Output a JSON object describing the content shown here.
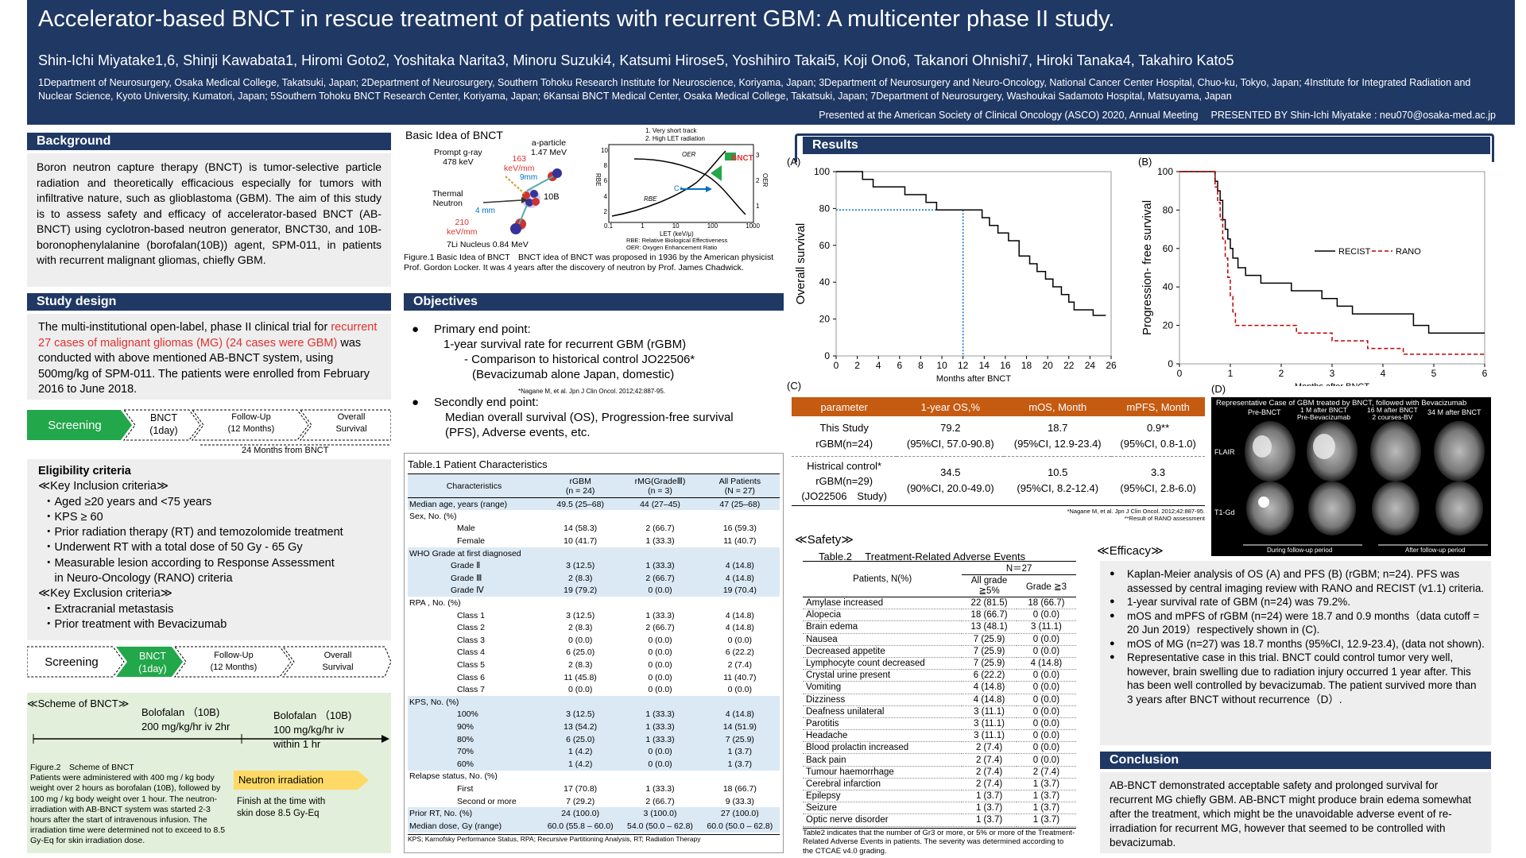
{
  "header": {
    "title": "Accelerator-based BNCT in rescue treatment of patients with recurrent GBM: A multicenter phase II study.",
    "authors": "Shin-Ichi Miyatake1,6, Shinji Kawabata1, Hiromi Goto2, Yoshitaka Narita3, Minoru Suzuki4, Katsumi Hirose5, Yoshihiro Takai5, Koji Ono6, Takanori Ohnishi7, Hiroki Tanaka4, Takahiro Kato5",
    "affiliations": "1Department of Neurosurgery, Osaka Medical College, Takatsuki, Japan; 2Department of Neurosurgery, Southern Tohoku Research Institute for Neuroscience, Koriyama, Japan; 3Department of Neurosurgery and Neuro-Oncology, National Cancer Center Hospital, Chuo-ku, Tokyo, Japan; 4Institute for Integrated Radiation and Nuclear Science, Kyoto University, Kumatori, Japan; 5Southern Tohoku BNCT Research Center, Koriyama, Japan; 6Kansai BNCT Medical Center, Osaka Medical College, Takatsuki, Japan; 7Department of Neurosurgery, Washoukai Sadamoto Hospital, Matsuyama, Japan",
    "presented": "Presented at the American Society of Clinical Oncology (ASCO) 2020, Annual Meeting　 PRESENTED BY Shin-Ichi Miyatake : neu070@osaka-med.ac.jp"
  },
  "background": {
    "heading": "Background",
    "text": "Boron neutron capture therapy (BNCT) is tumor-selective particle radiation and theoretically efficacious especially for tumors with infiltrative nature, such as glioblastoma (GBM). The aim of this study is to assess safety and efficacy of accelerator-based BNCT (AB-BNCT) using cyclotron-based neutron generator, BNCT30, and 10B-boronophenylalanine (borofalan(10B)) agent, SPM-011, in patients with recurrent malignant gliomas, chiefly GBM."
  },
  "study_design": {
    "heading": "Study design",
    "text_pre": "The multi-institutional open-label, phase II clinical trial for ",
    "text_red": "recurrent 27 cases of malignant gliomas (MG) (24 cases were GBM)",
    "text_post": " was conducted with above mentioned AB-BNCT system, using 500mg/kg of SPM-011. The patients were enrolled from February 2016 to June 2018.",
    "flow1": [
      "Screening",
      "BNCT\n(1day)",
      "Follow-Up\n(12 Months)",
      "Overall\nSurvival"
    ],
    "flow1_note": "24 Months from BNCT",
    "eligibility_title": "Eligibility criteria",
    "inclusion_title": "≪Key Inclusion criteria≫",
    "inclusion": [
      "・Aged ≥20 years and <75 years",
      "・KPS ≥ 60",
      "・Prior radiation therapy (RT) and temozolomide treatment",
      "・Underwent RT with a total dose of 50 Gy - 65 Gy",
      "・Measurable lesion according to Response Assessment",
      "　in Neuro-Oncology (RANO) criteria"
    ],
    "exclusion_title": "≪Key Exclusion criteria≫",
    "exclusion": [
      "・Extracranial metastasis",
      "・Prior treatment with Bevacizumab"
    ],
    "flow2": [
      "Screening",
      "BNCT\n(1day)",
      "Follow-Up\n(12 Months)",
      "Overall\nSurvival"
    ],
    "scheme_title": "≪Scheme of BNCT≫",
    "bolus1": "Bolofalan （10B)\n200 mg/kg/hr iv 2hr",
    "bolus2": "Bolofalan （10B)\n100 mg/kg/hr iv\nwithin 1 hr",
    "neutron": "Neutron irradiation",
    "finish": "Finish at the time with\nskin dose 8.5 Gy-Eq",
    "fig2_caption": "Figure.2　Scheme of BNCT\nPatients were administered with 400 mg / kg body weight over 2 hours as borofalan (10B), followed by 100 mg / kg body weight over 1 hour. The neutron-irradiation with AB-BNCT system was started 2-3 hours after the start of intravenous infusion. The irradiation time were determined not to exceed to 8.5 Gy-Eq for skin irradiation dose."
  },
  "basic_idea": {
    "title": "Basic Idea of BNCT",
    "labels": {
      "prompt": "Prompt g-ray\n478 keV",
      "alpha": "a-particle\n1.47 MeV",
      "kev163": "163\nkeV/mm",
      "um9": "9mm",
      "thermal": "Thermal\nNeutron",
      "b10": "10B",
      "mm4": "4 mm",
      "kev210": "210\nkeV/mm",
      "li": "7Li Nucleus 0.84 MeV",
      "legend1": "1. Very short track",
      "legend2": "2. High LET radiation",
      "oer": "OER",
      "bnct": "BNCT",
      "c": "C+",
      "rbe_curve": "RBE",
      "rbe_axis": "RBE",
      "oer_axis": "OER",
      "let": "LET (keV/μ)",
      "foot1": "RBE: Relative Biological Effectiveness",
      "foot2": "OER: Oxygen Enhancement Ratio",
      "y_ticks": [
        "10",
        "8",
        "6",
        "4",
        "2",
        "0"
      ],
      "y2_ticks": [
        "3",
        "2",
        "1"
      ],
      "x_ticks": [
        "0.1",
        "1",
        "10",
        "100",
        "1000"
      ]
    },
    "caption": "Figure.1 Basic Idea of BNCT　BNCT idea of BNCT was proposed in 1936 by the American physicist Prof. Gordon Locker. It was 4 years after the discovery of neutron by Prof. James Chadwick."
  },
  "objectives": {
    "heading": "Objectives",
    "primary": "Primary end point:",
    "primary_lines": [
      "1-year survival rate for recurrent GBM (rGBM)",
      "- Comparison to historical control JO22506*",
      "(Bevacizumab alone Japan, domestic)"
    ],
    "ref": "*Nagane M, et al. Jpn J Clin Oncol. 2012;42:887-95.",
    "secondary": "Secondly end point:",
    "secondary_lines": [
      "Median overall survival (OS), Progression-free survival",
      "(PFS), Adverse events, etc."
    ]
  },
  "table1": {
    "title": "Table.1 Patient Characteristics",
    "headers": [
      "Characteristics",
      "rGBM\n(n = 24)",
      "rMG(GradeⅢ)\n(n = 3)",
      "All Patients\n(N = 27)"
    ],
    "rows": [
      {
        "c": "Median age, years (range)",
        "a": "49.5 (25–68)",
        "b": "44 (27–45)",
        "d": "47 (25–68)",
        "indent": 0,
        "shade": true
      },
      {
        "c": "Sex, No. (%)",
        "a": "",
        "b": "",
        "d": "",
        "indent": 0,
        "shade": false
      },
      {
        "c": "Male",
        "a": "14 (58.3)",
        "b": "2 (66.7)",
        "d": "16 (59.3)",
        "indent": 2,
        "shade": false
      },
      {
        "c": "Female",
        "a": "10 (41.7)",
        "b": "1 (33.3)",
        "d": "11 (40.7)",
        "indent": 2,
        "shade": false
      },
      {
        "c": "WHO Grade at first diagnosed",
        "a": "",
        "b": "",
        "d": "",
        "indent": 0,
        "shade": true
      },
      {
        "c": "Grade Ⅱ",
        "a": "3 (12.5)",
        "b": "1 (33.3)",
        "d": "4 (14.8)",
        "indent": 1,
        "shade": true
      },
      {
        "c": "Grade Ⅲ",
        "a": "2 (8.3)",
        "b": "2 (66.7)",
        "d": "4 (14.8)",
        "indent": 1,
        "shade": true
      },
      {
        "c": "Grade Ⅳ",
        "a": "19 (79.2)",
        "b": "0 (0.0)",
        "d": "19 (70.4)",
        "indent": 1,
        "shade": true
      },
      {
        "c": "RPA , No. (%)",
        "a": "",
        "b": "",
        "d": "",
        "indent": 0,
        "shade": false
      },
      {
        "c": "Class 1",
        "a": "3 (12.5)",
        "b": "1 (33.3)",
        "d": "4 (14.8)",
        "indent": 2,
        "shade": false
      },
      {
        "c": "Class 2",
        "a": "2 (8.3)",
        "b": "2 (66.7)",
        "d": "4 (14.8)",
        "indent": 2,
        "shade": false
      },
      {
        "c": "Class 3",
        "a": "0 (0.0)",
        "b": "0 (0.0)",
        "d": "0 (0.0)",
        "indent": 2,
        "shade": false
      },
      {
        "c": "Class 4",
        "a": "6 (25.0)",
        "b": "0 (0.0)",
        "d": "6 (22.2)",
        "indent": 2,
        "shade": false
      },
      {
        "c": "Class 5",
        "a": "2 (8.3)",
        "b": "0 (0.0)",
        "d": "2 (7.4)",
        "indent": 2,
        "shade": false
      },
      {
        "c": "Class 6",
        "a": "11 (45.8)",
        "b": "0 (0.0)",
        "d": "11 (40.7)",
        "indent": 2,
        "shade": false
      },
      {
        "c": "Class 7",
        "a": "0 (0.0)",
        "b": "0 (0.0)",
        "d": "0 (0.0)",
        "indent": 2,
        "shade": false
      },
      {
        "c": "KPS, No. (%)",
        "a": "",
        "b": "",
        "d": "",
        "indent": 0,
        "shade": true
      },
      {
        "c": "100%",
        "a": "3 (12.5)",
        "b": "1 (33.3)",
        "d": "4 (14.8)",
        "indent": 2,
        "shade": true
      },
      {
        "c": "90%",
        "a": "13 (54.2)",
        "b": "1 (33.3)",
        "d": "14 (51.9)",
        "indent": 2,
        "shade": true
      },
      {
        "c": "80%",
        "a": "6 (25.0)",
        "b": "1 (33.3)",
        "d": "7 (25.9)",
        "indent": 2,
        "shade": true
      },
      {
        "c": "70%",
        "a": "1 (4.2)",
        "b": "0 (0.0)",
        "d": "1 (3.7)",
        "indent": 2,
        "shade": true
      },
      {
        "c": "60%",
        "a": "1 (4.2)",
        "b": "0 (0.0)",
        "d": "1 (3.7)",
        "indent": 2,
        "shade": true
      },
      {
        "c": "Relapse status, No. (%)",
        "a": "",
        "b": "",
        "d": "",
        "indent": 0,
        "shade": false
      },
      {
        "c": "First",
        "a": "17 (70.8)",
        "b": "1 (33.3)",
        "d": "18 (66.7)",
        "indent": 2,
        "shade": false
      },
      {
        "c": "Second or more",
        "a": "7 (29.2)",
        "b": "2 (66.7)",
        "d": "9 (33.3)",
        "indent": 2,
        "shade": false
      },
      {
        "c": "Prior RT, No. (%)",
        "a": "24 (100.0)",
        "b": "3 (100.0)",
        "d": "27 (100.0)",
        "indent": 0,
        "shade": true
      },
      {
        "c": "Median dose, Gy (range)",
        "a": "60.0 (55.8 – 60.0)",
        "b": "54.0 (50.0 – 62.8)",
        "d": "60.0 (50.0 – 62.8)",
        "indent": 0,
        "shade": true
      }
    ],
    "footnote": "KPS; Karnofsky Performance Status, RPA; Recursive Partitioning Analysis, RT; Radiation Therapy"
  },
  "results": {
    "heading": "Results",
    "panel_a": "(A)",
    "panel_b": "(B)",
    "panel_c": "(C)",
    "panel_d": "(D)",
    "results_table": {
      "headers": [
        "parameter",
        "1-year OS,%",
        "mOS, Month",
        "mPFS, Month"
      ],
      "rows": [
        [
          "This Study\nrGBM(n=24)",
          "79.2\n(95%CI, 57.0-90.8)",
          "18.7\n(95%CI, 12.9-23.4)",
          "0.9**\n(95%CI, 0.8-1.0)"
        ],
        [
          "Historical control*\nrGBM(n=29)\n(JO22506　Study)",
          "34.5\n(90%CI, 20.0-49.0)",
          "10.5\n(95%CI, 8.2-12.4)",
          "3.3\n(95%CI, 2.8-6.0)"
        ]
      ],
      "rows_display": [
        [
          "This Study\nrGBM(n=24)",
          "79.2\n(95%CI, 57.0-90.8)",
          "18.7\n(95%CI, 12.9-23.4)",
          "0.9**\n(95%CI, 0.8-1.0)"
        ],
        [
          "Histrical control*\nrGBM(n=29)\n(JO22506　Study)",
          "34.5\n(90%CI, 20.0-49.0)",
          "10.5\n(95%CI, 8.2-12.4)",
          "3.3\n(95%CI, 2.8-6.0)"
        ]
      ],
      "foot1": "*Nagane M, et al. Jpn J Clin Oncol. 2012;42:887-95.",
      "foot2": "**Result of RANO assessment"
    },
    "mri": {
      "title": "Representative Case of GBM treated by BNCT, followed with Bevacizumab",
      "cols": [
        "Pre-BNCT",
        "1 M after BNCT\nPre-Bevacizumab",
        "16 M after BNCT\n2 courses-BV",
        "34 M after BNCT"
      ],
      "row_labels": [
        "FLAIR",
        "T1-Gd"
      ],
      "bottom1": "During follow-up period",
      "bottom2": "After follow-up period"
    }
  },
  "safety": {
    "heading": "≪Safety≫",
    "title": "Table.2　 Treatment-Related Adverse Events",
    "n": "N＝27",
    "col1": "Patients, N(%)",
    "col2": "All grade\n≧5%",
    "col3": "Grade ≧3",
    "rows": [
      [
        "Amylase increased",
        "22 (81.5)",
        "18 (66.7)"
      ],
      [
        "Alopecia",
        "18 (66.7)",
        "0 (0.0)"
      ],
      [
        "Brain edema",
        "13 (48.1)",
        "3 (11.1)"
      ],
      [
        "Nausea",
        "7 (25.9)",
        "0 (0.0)"
      ],
      [
        "Decreased appetite",
        "7 (25.9)",
        "0 (0.0)"
      ],
      [
        "Lymphocyte count decreased",
        "7 (25.9)",
        "4 (14.8)"
      ],
      [
        "Crystal urine present",
        "6 (22.2)",
        "0 (0.0)"
      ],
      [
        "Vomiting",
        "4 (14.8)",
        "0 (0.0)"
      ],
      [
        "Dizziness",
        "4 (14.8)",
        "0 (0.0)"
      ],
      [
        "Deafness unilateral",
        "3 (11.1)",
        "0 (0.0)"
      ],
      [
        "Parotitis",
        "3 (11.1)",
        "0 (0.0)"
      ],
      [
        "Headache",
        "3 (11.1)",
        "0 (0.0)"
      ],
      [
        "Blood prolactin increased",
        "2 (7.4)",
        "0 (0.0)"
      ],
      [
        "Back pain",
        "2 (7.4)",
        "0 (0.0)"
      ],
      [
        "Tumour haemorrhage",
        "2 (7.4)",
        "2 (7.4)"
      ],
      [
        "Cerebral infarction",
        "2 (7.4)",
        "1 (3.7)"
      ],
      [
        "Epilepsy",
        "1 (3.7)",
        "1 (3.7)"
      ],
      [
        "Seizure",
        "1 (3.7)",
        "1 (3.7)"
      ],
      [
        "Optic nerve disorder",
        "1 (3.7)",
        "1 (3.7)"
      ]
    ],
    "footnote": "Table2 indicates that the number of Gr3 or more, or 5% or more of the Treatment-Related Adverse Events in patients. The severity was determined according to the CTCAE v4.0 grading."
  },
  "efficacy": {
    "heading": "≪Efficacy≫",
    "bullets": [
      "Kaplan-Meier analysis of OS (A) and PFS (B) (rGBM; n=24). PFS was assessed by central imaging review with RANO and RECIST (v1.1) criteria.",
      "1-year survival rate of GBM (n=24) was 79.2%.",
      "mOS and mPFS of rGBM (n=24) were 18.7 and 0.9 months（data cutoff = 20 Jun 2019）respectively shown in (C).",
      "mOS of MG (n=27) was 18.7 months (95%CI, 12.9-23.4), (data not shown).",
      "Representative case in this trial. BNCT could control tumor very well, however, brain swelling due to radiation injury occurred 1 year after. This has been well controlled by bevacizumab. The patient survived more than 3 years after BNCT without recurrence（D）."
    ]
  },
  "conclusion": {
    "heading": "Conclusion",
    "text": "AB-BNCT demonstrated acceptable safety and prolonged survival for recurrent MG chiefly GBM. AB-BNCT might produce brain edema somewhat after the treatment, which might be the unavoidable adverse event of re-irradiation for recurrent MG, however that seemed to be controlled with bevacizumab."
  },
  "chart_data": [
    {
      "type": "line",
      "panel": "A",
      "ylabel": "Overall survival",
      "xlabel": "Months after BNCT",
      "xlim": [
        0,
        26
      ],
      "ylim": [
        0,
        100
      ],
      "x_ticks": [
        0,
        2,
        4,
        6,
        8,
        10,
        12,
        14,
        16,
        18,
        20,
        22,
        24,
        26
      ],
      "y_ticks": [
        0,
        20,
        40,
        60,
        80,
        100
      ],
      "reference": {
        "x": 12,
        "y": 79.2
      },
      "series": [
        {
          "color": "#000000",
          "step": true,
          "x": [
            0,
            2.5,
            3.5,
            6.5,
            8.5,
            9.5,
            10.3,
            11.2,
            11.8,
            13.8,
            14.5,
            15.3,
            16.3,
            17.3,
            18.3,
            19.0,
            19.8,
            20.5,
            21.3,
            22.0,
            22.5,
            23.2,
            23.8,
            24.3,
            25.5
          ],
          "y": [
            100,
            95.8,
            91.7,
            87.5,
            83.3,
            79.2,
            79.2,
            79.2,
            79.2,
            75.0,
            70.8,
            66.7,
            62.5,
            54.2,
            50.0,
            45.8,
            41.7,
            37.5,
            33.3,
            29.2,
            25.0,
            25.0,
            25.0,
            22.0,
            22.0
          ]
        }
      ]
    },
    {
      "type": "line",
      "panel": "B",
      "ylabel": "Progression- free survival",
      "xlabel": "Months after BNCT",
      "xlim": [
        0,
        6
      ],
      "ylim": [
        0,
        100
      ],
      "x_ticks": [
        0,
        1,
        2,
        3,
        4,
        5,
        6
      ],
      "y_ticks": [
        0,
        20,
        40,
        60,
        80,
        100
      ],
      "legend": "top-right",
      "series": [
        {
          "name": "RECIST",
          "color": "#000000",
          "step": true,
          "x": [
            0,
            0.7,
            0.75,
            0.8,
            0.85,
            0.9,
            0.95,
            1.0,
            1.05,
            1.15,
            1.3,
            1.6,
            1.9,
            2.2,
            2.5,
            2.8,
            3.1,
            3.4,
            4.6,
            4.9,
            5.3,
            6.0
          ],
          "y": [
            100,
            95,
            90,
            85,
            75,
            70,
            65,
            60,
            55,
            50,
            46,
            42,
            42,
            38,
            38,
            34,
            30,
            26,
            20,
            16,
            16,
            16
          ]
        },
        {
          "name": "RANO",
          "color": "#c00000",
          "step": true,
          "x": [
            0,
            0.7,
            0.75,
            0.8,
            0.85,
            0.9,
            0.95,
            1.0,
            1.05,
            1.1,
            1.5,
            2.3,
            3.0,
            3.7,
            4.4,
            6.0
          ],
          "y": [
            100,
            92,
            84,
            75,
            65,
            55,
            45,
            35,
            27,
            20,
            20,
            16,
            12,
            8,
            5,
            5
          ]
        }
      ]
    }
  ]
}
